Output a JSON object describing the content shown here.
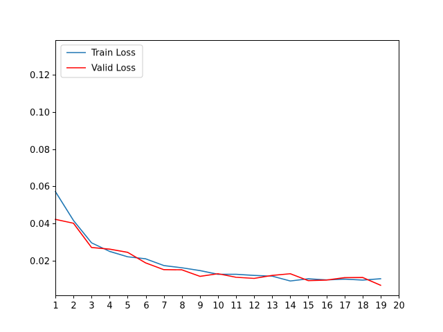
{
  "chart_data": {
    "type": "line",
    "title": "",
    "xlabel": "",
    "ylabel": "",
    "xlim": [
      1,
      20
    ],
    "ylim": [
      0.0015,
      0.1385
    ],
    "x_ticks": [
      1,
      2,
      3,
      4,
      5,
      6,
      7,
      8,
      9,
      10,
      11,
      12,
      13,
      14,
      15,
      16,
      17,
      18,
      19,
      20
    ],
    "x_tick_labels": [
      "1",
      "2",
      "3",
      "4",
      "5",
      "6",
      "7",
      "8",
      "9",
      "10",
      "11",
      "12",
      "13",
      "14",
      "15",
      "16",
      "17",
      "18",
      "19",
      "20"
    ],
    "y_ticks": [
      0.02,
      0.04,
      0.06,
      0.08,
      0.1,
      0.12
    ],
    "y_tick_labels": [
      "0.02",
      "0.04",
      "0.06",
      "0.08",
      "0.10",
      "0.12"
    ],
    "grid": false,
    "legend_position": "upper-left",
    "x": [
      1,
      2,
      3,
      4,
      5,
      6,
      7,
      8,
      9,
      10,
      11,
      12,
      13,
      14,
      15,
      16,
      17,
      18,
      19
    ],
    "series": [
      {
        "name": "Train Loss",
        "color": "#1f77b4",
        "values": [
          0.0572,
          0.0417,
          0.0297,
          0.0251,
          0.0222,
          0.0211,
          0.0175,
          0.0163,
          0.0148,
          0.0128,
          0.0128,
          0.0122,
          0.0118,
          0.0092,
          0.0104,
          0.0098,
          0.0102,
          0.0097,
          0.0104
        ]
      },
      {
        "name": "Valid Loss",
        "color": "#ff0000",
        "values": [
          0.0423,
          0.0402,
          0.0272,
          0.0263,
          0.0246,
          0.0189,
          0.0153,
          0.0152,
          0.0117,
          0.0131,
          0.0112,
          0.0106,
          0.0122,
          0.0131,
          0.0094,
          0.0097,
          0.011,
          0.0111,
          0.0069
        ]
      }
    ]
  }
}
